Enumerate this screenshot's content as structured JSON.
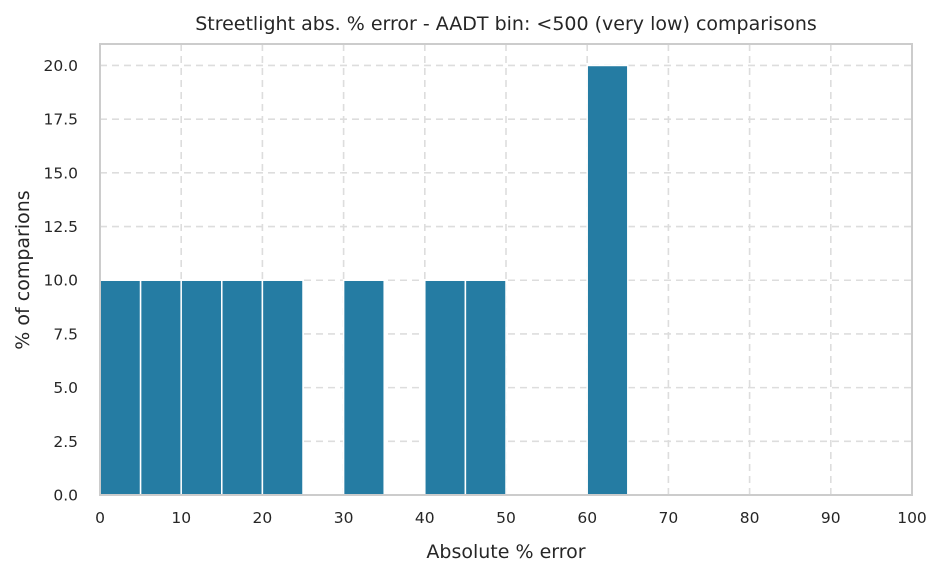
{
  "chart_data": {
    "type": "bar",
    "title": "Streetlight abs. % error - AADT bin: <500 (very low) comparisons",
    "xlabel": "Absolute % error",
    "ylabel": "% of comparions",
    "bin_width": 5,
    "bins": [
      {
        "start": 0,
        "value": 10
      },
      {
        "start": 5,
        "value": 10
      },
      {
        "start": 10,
        "value": 10
      },
      {
        "start": 15,
        "value": 10
      },
      {
        "start": 20,
        "value": 10
      },
      {
        "start": 30,
        "value": 10
      },
      {
        "start": 40,
        "value": 10
      },
      {
        "start": 45,
        "value": 10
      },
      {
        "start": 60,
        "value": 20
      }
    ],
    "xlim": [
      0,
      100
    ],
    "ylim": [
      0,
      21
    ],
    "xticks": [
      0,
      10,
      20,
      30,
      40,
      50,
      60,
      70,
      80,
      90,
      100
    ],
    "xtick_labels": [
      "0",
      "10",
      "20",
      "30",
      "40",
      "50",
      "60",
      "70",
      "80",
      "90",
      "100"
    ],
    "yticks": [
      0,
      2.5,
      5,
      7.5,
      10,
      12.5,
      15,
      17.5,
      20
    ],
    "ytick_labels": [
      "0.0",
      "2.5",
      "5.0",
      "7.5",
      "10.0",
      "12.5",
      "15.0",
      "17.5",
      "20.0"
    ],
    "grid": true,
    "colors": {
      "bar": "#257ca3",
      "bar_edge": "#ffffff",
      "grid": "#dddddd",
      "frame": "#cccccc"
    }
  }
}
